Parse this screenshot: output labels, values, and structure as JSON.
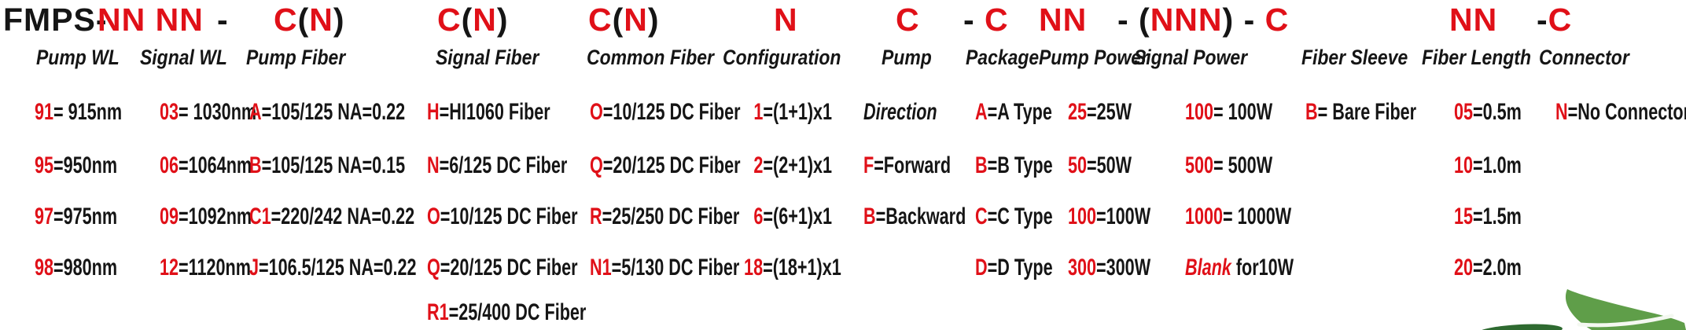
{
  "part_code": {
    "segments": [
      {
        "parts": [
          {
            "t": "FMPS-",
            "c": "k"
          }
        ]
      },
      {
        "parts": [
          {
            "t": "NN NN",
            "c": "r"
          }
        ]
      },
      {
        "parts": [
          {
            "t": "-",
            "c": "k"
          }
        ]
      },
      {
        "parts": [
          {
            "t": "C",
            "c": "r"
          },
          {
            "t": "(",
            "c": "k"
          },
          {
            "t": "N",
            "c": "r"
          },
          {
            "t": ")",
            "c": "k"
          }
        ]
      },
      {
        "parts": [
          {
            "t": "C",
            "c": "r"
          },
          {
            "t": "(",
            "c": "k"
          },
          {
            "t": "N",
            "c": "r"
          },
          {
            "t": ")",
            "c": "k"
          }
        ]
      },
      {
        "parts": [
          {
            "t": "C",
            "c": "r"
          },
          {
            "t": "(",
            "c": "k"
          },
          {
            "t": "N",
            "c": "r"
          },
          {
            "t": ")",
            "c": "k"
          }
        ]
      },
      {
        "parts": [
          {
            "t": "N",
            "c": "r"
          }
        ]
      },
      {
        "parts": [
          {
            "t": "C",
            "c": "r"
          }
        ]
      },
      {
        "parts": [
          {
            "t": "- ",
            "c": "k"
          },
          {
            "t": "C",
            "c": "r"
          }
        ]
      },
      {
        "parts": [
          {
            "t": "NN",
            "c": "r"
          }
        ]
      },
      {
        "parts": [
          {
            "t": "- (",
            "c": "k"
          },
          {
            "t": "NNN",
            "c": "r"
          },
          {
            "t": ") - ",
            "c": "k"
          },
          {
            "t": "C",
            "c": "r"
          }
        ]
      },
      {
        "parts": [
          {
            "t": "NN",
            "c": "r"
          }
        ]
      },
      {
        "parts": [
          {
            "t": "-",
            "c": "k"
          },
          {
            "t": "C",
            "c": "r"
          }
        ]
      }
    ]
  },
  "columns": [
    {
      "id": "pump-wl",
      "label": "Pump WL",
      "items": [
        {
          "code": "91",
          "rest": "= 915nm"
        },
        {
          "code": "95",
          "rest": "=950nm"
        },
        {
          "code": "97",
          "rest": "=975nm"
        },
        {
          "code": "98",
          "rest": "=980nm"
        }
      ]
    },
    {
      "id": "signal-wl",
      "label": "Signal WL",
      "items": [
        {
          "code": "03",
          "rest": "= 1030nm"
        },
        {
          "code": "06",
          "rest": "=1064nm"
        },
        {
          "code": "09",
          "rest": "=1092nm"
        },
        {
          "code": "12",
          "rest": "=1120nm"
        }
      ]
    },
    {
      "id": "pump-fiber",
      "label": "Pump Fiber",
      "items": [
        {
          "code": "A",
          "rest": "=105/125 NA=0.22"
        },
        {
          "code": "B",
          "rest": "=105/125 NA=0.15"
        },
        {
          "code": "C1",
          "rest": "=220/242 NA=0.22"
        },
        {
          "code": "J",
          "rest": "=106.5/125 NA=0.22"
        }
      ]
    },
    {
      "id": "signal-fiber",
      "label": "Signal Fiber",
      "items": [
        {
          "code": "H",
          "rest": "=HI1060 Fiber"
        },
        {
          "code": "N",
          "rest": "=6/125 DC Fiber"
        },
        {
          "code": "O",
          "rest": "=10/125 DC Fiber"
        },
        {
          "code": "Q",
          "rest": "=20/125 DC Fiber"
        },
        {
          "code": "R1",
          "rest": "=25/400 DC Fiber"
        }
      ]
    },
    {
      "id": "common-fiber",
      "label": "Common Fiber",
      "items": [
        {
          "code": "O",
          "rest": "=10/125 DC Fiber"
        },
        {
          "code": "Q",
          "rest": "=20/125 DC Fiber"
        },
        {
          "code": "R",
          "rest": "=25/250 DC Fiber"
        },
        {
          "code": "N1",
          "rest": "=5/130 DC Fiber"
        }
      ]
    },
    {
      "id": "configuration",
      "label": "Configuration",
      "items": [
        {
          "code": "1",
          "rest": "=(1+1)x1"
        },
        {
          "code": "2",
          "rest": "=(2+1)x1"
        },
        {
          "code": "6",
          "rest": "=(6+1)x1"
        },
        {
          "code": "18",
          "rest": "=(18+1)x1"
        }
      ]
    },
    {
      "id": "pump-direction",
      "label": "Pump",
      "items": [
        {
          "variant": "direction",
          "code": "",
          "rest": "Direction"
        },
        {
          "code": "F",
          "rest": "=Forward"
        },
        {
          "code": "B",
          "rest": "=Backward"
        }
      ]
    },
    {
      "id": "package",
      "label": "Package",
      "items": [
        {
          "code": "A",
          "rest": "=A Type"
        },
        {
          "code": "B",
          "rest": "=B Type"
        },
        {
          "code": "C",
          "rest": "=C Type"
        },
        {
          "code": "D",
          "rest": "=D Type"
        }
      ]
    },
    {
      "id": "pump-power",
      "label": "Pump Power",
      "items": [
        {
          "code": "25",
          "rest": "=25W"
        },
        {
          "code": "50",
          "rest": "=50W"
        },
        {
          "code": "100",
          "rest": "=100W"
        },
        {
          "code": "300",
          "rest": "=300W"
        }
      ]
    },
    {
      "id": "signal-power",
      "label": "Signal Power",
      "items": [
        {
          "code": "100",
          "rest": "= 100W"
        },
        {
          "code": "500",
          "rest": "= 500W"
        },
        {
          "code": "1000",
          "rest": "= 1000W"
        },
        {
          "variant": "blank",
          "code": "Blank",
          "rest": " for10W"
        }
      ]
    },
    {
      "id": "fiber-sleeve",
      "label": "Fiber Sleeve",
      "items": [
        {
          "code": "B",
          "rest": "= Bare Fiber"
        }
      ]
    },
    {
      "id": "fiber-length",
      "label": "Fiber Length",
      "items": [
        {
          "code": "05",
          "rest": "=0.5m"
        },
        {
          "code": "10",
          "rest": "=1.0m"
        },
        {
          "code": "15",
          "rest": "=1.5m"
        },
        {
          "code": "20",
          "rest": "=2.0m"
        }
      ]
    },
    {
      "id": "connector",
      "label": "Connector",
      "items": [
        {
          "code": "N",
          "rest": "=No Connector"
        }
      ]
    }
  ],
  "colors": {
    "red": "#e01018",
    "text": "#151515",
    "leaf_green": "#5f9e49",
    "leaf_vein": "#f4f8f1",
    "leaf_dark": "#2e6a30"
  },
  "icons": {
    "logo": "leaf-logo"
  }
}
